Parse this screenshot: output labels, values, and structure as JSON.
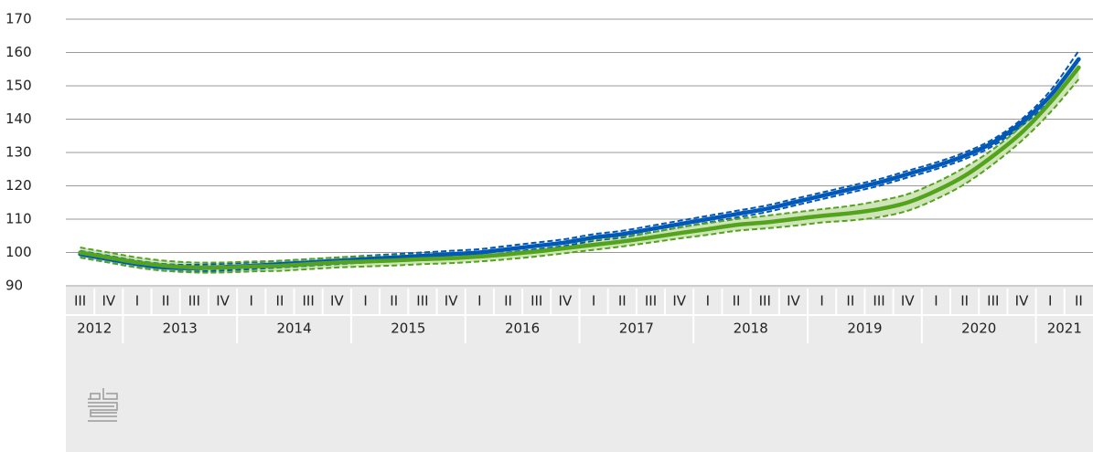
{
  "chart_data": {
    "type": "line",
    "categories": [
      "III",
      "IV",
      "I",
      "II",
      "III",
      "IV",
      "I",
      "II",
      "III",
      "IV",
      "I",
      "II",
      "III",
      "IV",
      "I",
      "II",
      "III",
      "IV",
      "I",
      "II",
      "III",
      "IV",
      "I",
      "II",
      "III",
      "IV",
      "I",
      "II",
      "III",
      "IV",
      "I",
      "II",
      "III",
      "IV",
      "I",
      "II"
    ],
    "x_groups": [
      "2012",
      "2013",
      "2014",
      "2015",
      "2016",
      "2017",
      "2018",
      "2019",
      "2020",
      "2021"
    ],
    "series": [
      {
        "color": "#0058b8",
        "band": false,
        "values": [
          99.5,
          98,
          96.5,
          95.5,
          95.3,
          95.6,
          96,
          96.5,
          97,
          97.5,
          98,
          98.5,
          99,
          99.5,
          100,
          101,
          102,
          103,
          104.5,
          105.5,
          107,
          108.5,
          110,
          111.5,
          113,
          115,
          117,
          119,
          121,
          123.5,
          126,
          129,
          133,
          139,
          147,
          158
        ],
        "upper": [
          100.5,
          99,
          97.5,
          96.5,
          96.3,
          96.6,
          97,
          97.5,
          98,
          98.5,
          99,
          99.5,
          100,
          100.5,
          101,
          102,
          103,
          104,
          105.5,
          106.5,
          108,
          109.5,
          111,
          112.5,
          114,
          116,
          118,
          120,
          122,
          124.5,
          127,
          130,
          134,
          140,
          148.5,
          160.5
        ],
        "lower": [
          98.5,
          97,
          95.5,
          94.5,
          94.3,
          94.6,
          95,
          95.5,
          96,
          96.5,
          97,
          97.5,
          98,
          98.5,
          99,
          100,
          101,
          102,
          103.5,
          104.5,
          106,
          107.5,
          109,
          110.5,
          112,
          114,
          116,
          118,
          120,
          122.5,
          125,
          128,
          132,
          138,
          145.5,
          155.5
        ]
      },
      {
        "color": "#53a31d",
        "band": true,
        "band_color": "#cfe5b9",
        "values": [
          100,
          98.5,
          97,
          96,
          95.5,
          95.5,
          95.8,
          96,
          96.5,
          97,
          97.3,
          97.6,
          98,
          98.3,
          98.8,
          99.5,
          100.3,
          101.3,
          102.3,
          103.3,
          104.5,
          105.8,
          107,
          108.3,
          109,
          110,
          111,
          111.8,
          113,
          115,
          118.5,
          123,
          129,
          136,
          145,
          155.5
        ],
        "upper": [
          101.5,
          100,
          98.5,
          97.5,
          97,
          97,
          97.3,
          97.5,
          98,
          98.5,
          98.8,
          99.1,
          99.5,
          99.8,
          100.3,
          101,
          101.8,
          102.8,
          103.8,
          104.8,
          106,
          107.5,
          108.8,
          110,
          111,
          112,
          113,
          114,
          115.5,
          117.5,
          121,
          125.5,
          131,
          138,
          147,
          158.5
        ],
        "lower": [
          98.5,
          97,
          95.5,
          94.5,
          94,
          94,
          94.3,
          94.5,
          95,
          95.5,
          95.8,
          96.1,
          96.5,
          96.8,
          97.3,
          98,
          98.8,
          99.8,
          100.8,
          101.8,
          103,
          104.2,
          105.3,
          106.5,
          107.2,
          108,
          109,
          109.6,
          110.6,
          112.5,
          116,
          120.5,
          126.5,
          133.5,
          142,
          152
        ]
      }
    ],
    "ylim": [
      90,
      170
    ],
    "yticks": [
      90,
      100,
      110,
      120,
      130,
      140,
      150,
      160,
      170
    ],
    "grid": true
  }
}
